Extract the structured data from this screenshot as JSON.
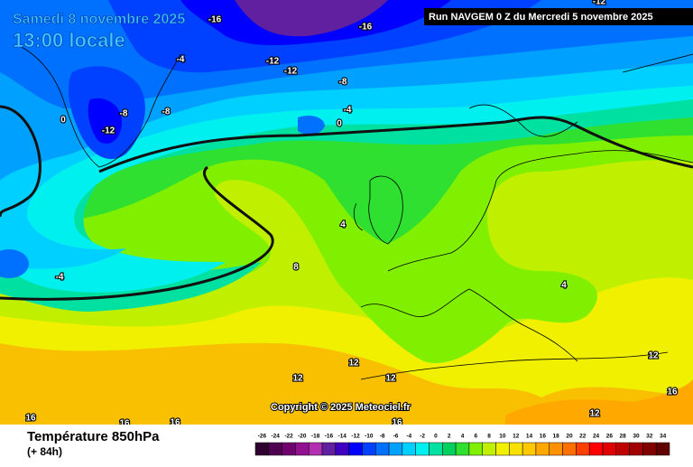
{
  "header": {
    "date": "Samedi 8 novembre 2025",
    "time": "13:00 locale",
    "run": "Run NAVGEM 0 Z du Mercredi 5 novembre 2025"
  },
  "contour_labels": [
    "-16",
    "-16",
    "-4",
    "-12",
    "-12",
    "-8",
    "-8",
    "-8",
    "-4",
    "0",
    "-12",
    "0",
    "4",
    "8",
    "-4",
    "4",
    "12",
    "12",
    "12",
    "12",
    "16",
    "12",
    "16",
    "16",
    "16",
    "16",
    "-12"
  ],
  "copyright": "Copyright © 2025 Meteociel.fr",
  "footer": {
    "title": "Température 850hPa",
    "lead": "(+ 84h)"
  },
  "legend": {
    "ticks": [
      -26,
      -24,
      -22,
      -20,
      -18,
      -16,
      -14,
      -12,
      -10,
      -8,
      -6,
      -4,
      -2,
      0,
      2,
      4,
      6,
      8,
      10,
      12,
      14,
      16,
      18,
      20,
      22,
      24,
      26,
      28,
      30,
      32,
      34
    ],
    "colors": [
      "#300030",
      "#500050",
      "#700070",
      "#901090",
      "#b030b0",
      "#6020a0",
      "#4000c0",
      "#0000ff",
      "#0040ff",
      "#0070ff",
      "#00a0ff",
      "#00d0ff",
      "#00f0f0",
      "#00e0a0",
      "#00d060",
      "#30e030",
      "#80f000",
      "#c0f000",
      "#f0f000",
      "#f8e000",
      "#ffc800",
      "#ffa800",
      "#ff9000",
      "#ff7000",
      "#ff4000",
      "#ff0000",
      "#e00000",
      "#c00000",
      "#a00000",
      "#800000",
      "#600000"
    ]
  }
}
